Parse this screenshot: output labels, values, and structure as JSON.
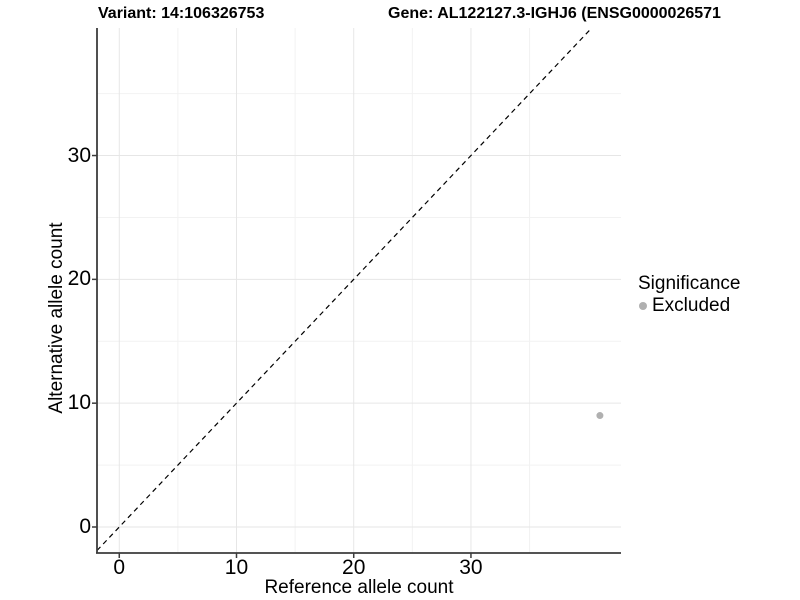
{
  "header": {
    "variant_title": "Variant: 14:106326753",
    "gene_title": "Gene: AL122127.3-IGHJ6 (ENSG0000026571"
  },
  "legend": {
    "title": "Significance",
    "items": [
      {
        "label": "Excluded",
        "marker": "circle-icon",
        "color": "#b0b0b0"
      }
    ]
  },
  "chart_data": {
    "type": "scatter",
    "title": "Variant: 14:106326753",
    "subtitle": "Gene: AL122127.3-IGHJ6 (ENSG0000026571",
    "xlabel": "Reference allele count",
    "ylabel": "Alternative allele count",
    "xlim": [
      -1.9,
      42.8
    ],
    "ylim": [
      -2.1,
      40.3
    ],
    "x_ticks": [
      0,
      10,
      20,
      30
    ],
    "y_ticks": [
      0,
      10,
      20,
      30
    ],
    "x_minor_gridlines": [
      5,
      15,
      25,
      35
    ],
    "y_minor_gridlines": [
      5,
      15,
      25,
      35
    ],
    "grid": true,
    "legend_position": "right",
    "reference_line": {
      "type": "identity",
      "slope": 1,
      "intercept": 0,
      "style": "dashed",
      "color": "#000000"
    },
    "series": [
      {
        "name": "Excluded",
        "color": "#b0b0b0",
        "marker": "circle",
        "points": [
          {
            "x": 41,
            "y": 9
          }
        ]
      }
    ],
    "colors": {
      "axis_line": "#3c3c3c",
      "tick_mark": "#3c3c3c",
      "grid_major": "#e6e6e6",
      "grid_minor": "#f2f2f2",
      "text": "#000000"
    }
  }
}
